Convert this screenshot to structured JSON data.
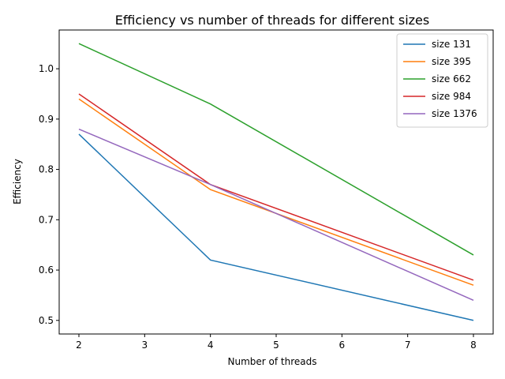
{
  "chart_data": {
    "type": "line",
    "title": "Efficiency vs number of threads for different sizes",
    "xlabel": "Number of threads",
    "ylabel": "Efficiency",
    "x": [
      2,
      4,
      8
    ],
    "xlim": [
      1.7,
      8.3
    ],
    "ylim": [
      0.473,
      1.077
    ],
    "xticks": [
      2,
      3,
      4,
      5,
      6,
      7,
      8
    ],
    "yticks": [
      0.5,
      0.6,
      0.7,
      0.8,
      0.9,
      1.0
    ],
    "ytick_labels": [
      "0.5",
      "0.6",
      "0.7",
      "0.8",
      "0.9",
      "1.0"
    ],
    "grid": false,
    "legend_position": "top-right",
    "series": [
      {
        "name": "size 131",
        "color": "#1f77b4",
        "values": [
          0.87,
          0.62,
          0.5
        ]
      },
      {
        "name": "size 395",
        "color": "#ff7f0e",
        "values": [
          0.94,
          0.76,
          0.57
        ]
      },
      {
        "name": "size 662",
        "color": "#2ca02c",
        "values": [
          1.05,
          0.93,
          0.63
        ]
      },
      {
        "name": "size 984",
        "color": "#d62728",
        "values": [
          0.95,
          0.77,
          0.58
        ]
      },
      {
        "name": "size 1376",
        "color": "#9467bd",
        "values": [
          0.88,
          0.77,
          0.54
        ]
      }
    ]
  }
}
